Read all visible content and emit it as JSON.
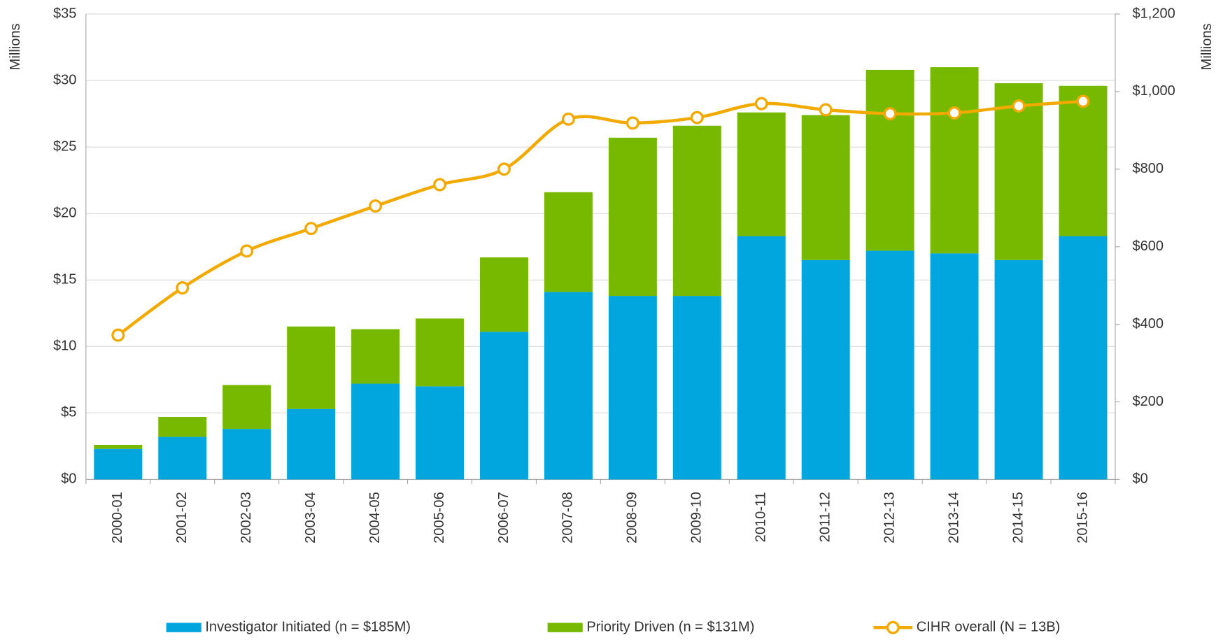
{
  "chart_data": {
    "type": "bar",
    "y_axis_label": "Millions",
    "y2_axis_label": "Millions",
    "categories": [
      "2000-01",
      "2001-02",
      "2002-03",
      "2003-04",
      "2004-05",
      "2005-06",
      "2006-07",
      "2007-08",
      "2008-09",
      "2009-10",
      "2010-11",
      "2011-12",
      "2012-13",
      "2013-14",
      "2014-15",
      "2015-16"
    ],
    "series": [
      {
        "name": "Investigator Initiated (n = $185M)",
        "type": "bar",
        "color": "#00a6dd",
        "values": [
          2.3,
          3.2,
          3.8,
          5.3,
          7.2,
          7.0,
          11.1,
          14.1,
          13.8,
          13.8,
          18.3,
          16.5,
          17.2,
          17.0,
          16.5,
          18.3
        ]
      },
      {
        "name": "Priority Driven (n = $131M)",
        "type": "bar",
        "color": "#77b800",
        "values": [
          0.3,
          1.5,
          3.3,
          6.2,
          4.1,
          5.1,
          5.6,
          7.5,
          11.9,
          12.8,
          9.3,
          10.9,
          13.6,
          14.0,
          13.3,
          11.3
        ]
      },
      {
        "name": "CIHR overall (N = 13B)",
        "type": "line",
        "axis": "y2",
        "color": "#f2a900",
        "values": [
          372,
          494,
          589,
          647,
          705,
          760,
          800,
          929,
          919,
          933,
          969,
          953,
          943,
          945,
          963,
          975
        ]
      }
    ],
    "stacked": true,
    "ylim": [
      0,
      35
    ],
    "yticks": [
      {
        "value": 0,
        "label": "$0"
      },
      {
        "value": 5,
        "label": "$5"
      },
      {
        "value": 10,
        "label": "$10"
      },
      {
        "value": 15,
        "label": "$15"
      },
      {
        "value": 20,
        "label": "$20"
      },
      {
        "value": 25,
        "label": "$25"
      },
      {
        "value": 30,
        "label": "$30"
      },
      {
        "value": 35,
        "label": "$35"
      }
    ],
    "y2lim": [
      0,
      1200
    ],
    "y2ticks": [
      {
        "value": 0,
        "label": "$0"
      },
      {
        "value": 200,
        "label": "$200"
      },
      {
        "value": 400,
        "label": "$400"
      },
      {
        "value": 600,
        "label": "$600"
      },
      {
        "value": 800,
        "label": "$800"
      },
      {
        "value": 1000,
        "label": "$1,000"
      },
      {
        "value": 1200,
        "label": "$1,200"
      }
    ],
    "grid": true,
    "legend": "bottom"
  }
}
